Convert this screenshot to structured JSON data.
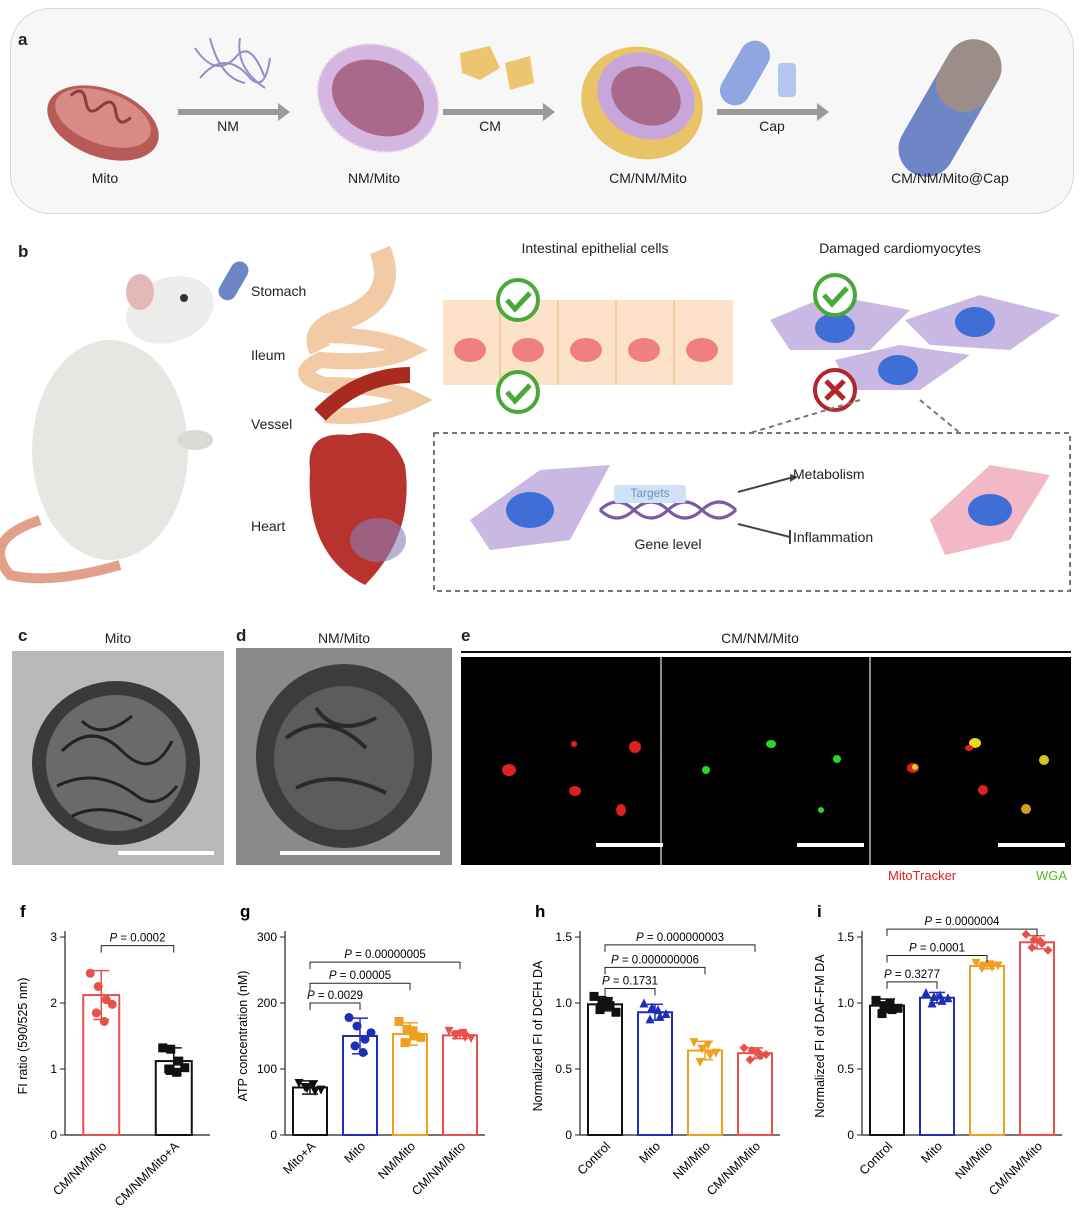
{
  "panel_a": {
    "letter": "a",
    "steps": [
      {
        "name": "Mito"
      },
      {
        "name": "NM/Mito"
      },
      {
        "name": "CM/NM/Mito"
      },
      {
        "name": "CM/NM/Mito@Cap"
      }
    ],
    "arrows": [
      "NM",
      "CM",
      "Cap"
    ]
  },
  "panel_b": {
    "letter": "b",
    "organs": [
      "Stomach",
      "Ileum",
      "Vessel",
      "Heart"
    ],
    "intestinal_title": "Intestinal epithelial cells",
    "cardio_title": "Damaged cardiomyocytes",
    "targets": "Targets",
    "gene_level": "Gene level",
    "metabolism": "Metabolism",
    "inflammation": "Inflammation"
  },
  "panel_c": {
    "letter": "c",
    "title": "Mito"
  },
  "panel_d": {
    "letter": "d",
    "title": "NM/Mito"
  },
  "panel_e": {
    "letter": "e",
    "title": "CM/NM/Mito",
    "legend_red": "MitoTracker",
    "legend_green": "WGA"
  },
  "colors": {
    "black": "#111111",
    "blue": "#1f2fb5",
    "orange": "#f0a020",
    "red": "#e8504a"
  },
  "chart_data": [
    {
      "letter": "f",
      "type": "bar",
      "ylabel": "FI ratio (590/525 nm)",
      "ylim": [
        0,
        3
      ],
      "yticks": [
        0,
        1,
        2,
        3
      ],
      "categories": [
        "CM/NM/Mito",
        "CM/NM/Mito+A"
      ],
      "values": [
        2.12,
        1.12
      ],
      "err": [
        0.37,
        0.2
      ],
      "colors": [
        "#e8504a",
        "#111111"
      ],
      "markers": [
        "circle",
        "square"
      ],
      "points": [
        [
          2.45,
          2.25,
          2.05,
          1.85,
          1.72,
          1.98
        ],
        [
          1.32,
          1.3,
          1.12,
          1.0,
          0.95,
          1.02
        ]
      ],
      "pvalues": [
        {
          "from": 0,
          "to": 1,
          "text": "P = 0.0002",
          "y": 2.87
        }
      ]
    },
    {
      "letter": "g",
      "type": "bar",
      "ylabel": "ATP concentration (nM)",
      "ylim": [
        0,
        300
      ],
      "yticks": [
        0,
        100,
        200,
        300
      ],
      "categories": [
        "Mito+A",
        "Mito",
        "NM/Mito",
        "CM/NM/Mito"
      ],
      "values": [
        72,
        150,
        153,
        151
      ],
      "err": [
        10,
        27,
        17,
        5
      ],
      "colors": [
        "#111111",
        "#1f2fb5",
        "#f0a020",
        "#e8504a"
      ],
      "markers": [
        "tri-down",
        "circle",
        "square",
        "tri-down"
      ],
      "points": [
        [
          78,
          70,
          66,
          72,
          75,
          68
        ],
        [
          178,
          165,
          145,
          135,
          125,
          155
        ],
        [
          172,
          160,
          150,
          140,
          158,
          148
        ],
        [
          157,
          152,
          148,
          150,
          154,
          146
        ]
      ],
      "pvalues": [
        {
          "from": 0,
          "to": 1,
          "text": "P = 0.0029",
          "y": 200
        },
        {
          "from": 0,
          "to": 2,
          "text": "P = 0.00005",
          "y": 230
        },
        {
          "from": 0,
          "to": 3,
          "text": "P = 0.00000005",
          "y": 262
        }
      ]
    },
    {
      "letter": "h",
      "type": "bar",
      "ylabel": "Normalized FI of DCFH DA",
      "ylim": [
        0,
        1.5
      ],
      "yticks": [
        0,
        0.5,
        1.0,
        1.5
      ],
      "categories": [
        "Control",
        "Mito",
        "NM/Mito",
        "CM/NM/Mito"
      ],
      "values": [
        0.99,
        0.93,
        0.64,
        0.62
      ],
      "err": [
        0.05,
        0.06,
        0.07,
        0.04
      ],
      "colors": [
        "#111111",
        "#1f2fb5",
        "#f0a020",
        "#e8504a"
      ],
      "markers": [
        "square",
        "tri-up",
        "tri-down",
        "diamond"
      ],
      "points": [
        [
          1.05,
          1.02,
          0.98,
          0.95,
          1.0,
          0.93
        ],
        [
          1.0,
          0.97,
          0.9,
          0.88,
          0.95,
          0.92
        ],
        [
          0.7,
          0.65,
          0.6,
          0.55,
          0.68,
          0.62
        ],
        [
          0.66,
          0.64,
          0.6,
          0.57,
          0.63,
          0.61
        ]
      ],
      "pvalues": [
        {
          "from": 0,
          "to": 1,
          "text": "P = 0.1731",
          "y": 1.11
        },
        {
          "from": 0,
          "to": 2,
          "text": "P = 0.000000006",
          "y": 1.27
        },
        {
          "from": 0,
          "to": 3,
          "text": "P = 0.000000003",
          "y": 1.44
        }
      ]
    },
    {
      "letter": "i",
      "type": "bar",
      "ylabel": "Normalized FI of DAF-FM DA",
      "ylim": [
        0,
        1.5
      ],
      "yticks": [
        0,
        0.5,
        1.0,
        1.5
      ],
      "categories": [
        "Control",
        "Mito",
        "NM/Mito",
        "CM/NM/Mito"
      ],
      "values": [
        0.98,
        1.04,
        1.28,
        1.46
      ],
      "err": [
        0.05,
        0.04,
        0.02,
        0.05
      ],
      "colors": [
        "#111111",
        "#1f2fb5",
        "#f0a020",
        "#e8504a"
      ],
      "markers": [
        "square",
        "tri-up",
        "tri-down",
        "diamond"
      ],
      "points": [
        [
          1.02,
          0.98,
          0.95,
          0.92,
          1.0,
          0.96
        ],
        [
          1.08,
          1.05,
          1.02,
          1.0,
          1.06,
          1.04
        ],
        [
          1.3,
          1.28,
          1.27,
          1.26,
          1.29,
          1.28
        ],
        [
          1.52,
          1.48,
          1.45,
          1.42,
          1.47,
          1.4
        ]
      ],
      "pvalues": [
        {
          "from": 0,
          "to": 1,
          "text": "P = 0.3277",
          "y": 1.16
        },
        {
          "from": 0,
          "to": 2,
          "text": "P = 0.0001",
          "y": 1.36
        },
        {
          "from": 0,
          "to": 3,
          "text": "P = 0.0000004",
          "y": 1.56
        }
      ]
    }
  ]
}
